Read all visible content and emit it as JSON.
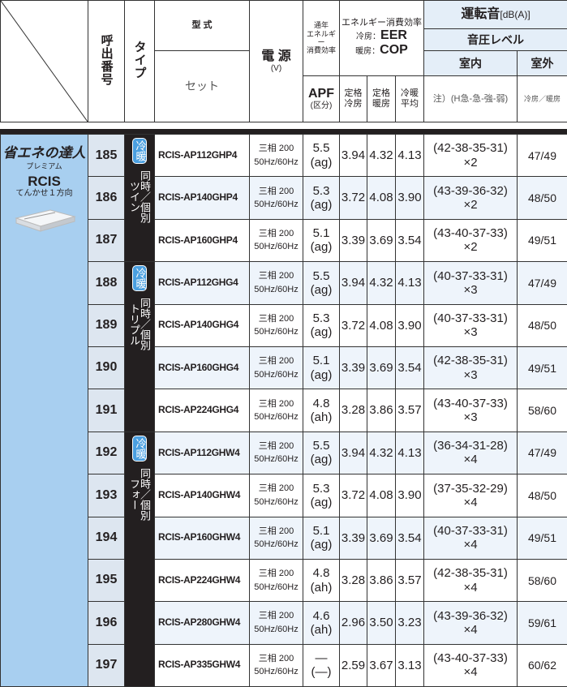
{
  "header": {
    "call_no": "呼出番号",
    "type": "タイプ",
    "model": "型 式",
    "set": "セット",
    "power": "電 源",
    "power_unit": "(V)",
    "annual": [
      "通年",
      "エネルギー",
      "消費効率"
    ],
    "eff": "エネルギー消費効率",
    "cool_label": "冷房：",
    "cool_code": "EER",
    "heat_label": "暖房：",
    "heat_code": "COP",
    "apf": "APF",
    "apf_class": "(区分)",
    "rated": "定格",
    "cool": "冷房",
    "heat": "暖房",
    "coolheat": "冷暖",
    "avg": "平均",
    "noise": "運転音",
    "noise_unit": "[dB(A)]",
    "pressure": "音圧レベル",
    "indoor": "室内",
    "outdoor": "室外",
    "note": "注）(H急-急-強-弱)",
    "outdoor_sub": "冷房／暖房"
  },
  "brand": {
    "logo": "省エネの達人",
    "sub": "プレミアム",
    "series": "RCIS",
    "kind": "てんかせ１方向"
  },
  "groups": [
    {
      "badge": "冷暖",
      "mode": "同時／個別",
      "kind": "ツイン",
      "rows": [
        [
          "185",
          "RCIS-AP112GHP4",
          "三相 200",
          "50Hz/60Hz",
          "5.5",
          "(ag)",
          "3.94",
          "4.32",
          "4.13",
          "(42-38-35-31)",
          "×2",
          "47/49"
        ],
        [
          "186",
          "RCIS-AP140GHP4",
          "三相 200",
          "50Hz/60Hz",
          "5.3",
          "(ag)",
          "3.72",
          "4.08",
          "3.90",
          "(43-39-36-32)",
          "×2",
          "48/50"
        ],
        [
          "187",
          "RCIS-AP160GHP4",
          "三相 200",
          "50Hz/60Hz",
          "5.1",
          "(ag)",
          "3.39",
          "3.69",
          "3.54",
          "(43-40-37-33)",
          "×2",
          "49/51"
        ]
      ]
    },
    {
      "badge": "冷暖",
      "mode": "同時／個別",
      "kind": "トリプル",
      "rows": [
        [
          "188",
          "RCIS-AP112GHG4",
          "三相 200",
          "50Hz/60Hz",
          "5.5",
          "(ag)",
          "3.94",
          "4.32",
          "4.13",
          "(40-37-33-31)",
          "×3",
          "47/49"
        ],
        [
          "189",
          "RCIS-AP140GHG4",
          "三相 200",
          "50Hz/60Hz",
          "5.3",
          "(ag)",
          "3.72",
          "4.08",
          "3.90",
          "(40-37-33-31)",
          "×3",
          "48/50"
        ],
        [
          "190",
          "RCIS-AP160GHG4",
          "三相 200",
          "50Hz/60Hz",
          "5.1",
          "(ag)",
          "3.39",
          "3.69",
          "3.54",
          "(42-38-35-31)",
          "×3",
          "49/51"
        ],
        [
          "191",
          "RCIS-AP224GHG4",
          "三相 200",
          "50Hz/60Hz",
          "4.8",
          "(ah)",
          "3.28",
          "3.86",
          "3.57",
          "(43-40-37-33)",
          "×3",
          "58/60"
        ]
      ]
    },
    {
      "badge": "冷暖",
      "mode": "同時／個別",
      "kind": "フォー",
      "rows": [
        [
          "192",
          "RCIS-AP112GHW4",
          "三相 200",
          "50Hz/60Hz",
          "5.5",
          "(ag)",
          "3.94",
          "4.32",
          "4.13",
          "(36-34-31-28)",
          "×4",
          "47/49"
        ],
        [
          "193",
          "RCIS-AP140GHW4",
          "三相 200",
          "50Hz/60Hz",
          "5.3",
          "(ag)",
          "3.72",
          "4.08",
          "3.90",
          "(37-35-32-29)",
          "×4",
          "48/50"
        ],
        [
          "194",
          "RCIS-AP160GHW4",
          "三相 200",
          "50Hz/60Hz",
          "5.1",
          "(ag)",
          "3.39",
          "3.69",
          "3.54",
          "(40-37-33-31)",
          "×4",
          "49/51"
        ],
        [
          "195",
          "RCIS-AP224GHW4",
          "三相 200",
          "50Hz/60Hz",
          "4.8",
          "(ah)",
          "3.28",
          "3.86",
          "3.57",
          "(42-38-35-31)",
          "×4",
          "58/60"
        ],
        [
          "196",
          "RCIS-AP280GHW4",
          "三相 200",
          "50Hz/60Hz",
          "4.6",
          "(ah)",
          "2.96",
          "3.50",
          "3.23",
          "(43-39-36-32)",
          "×4",
          "59/61"
        ],
        [
          "197",
          "RCIS-AP335GHW4",
          "三相 200",
          "50Hz/60Hz",
          "—",
          "(—)",
          "2.59",
          "3.67",
          "3.13",
          "(43-40-37-33)",
          "×4",
          "60/62"
        ]
      ]
    }
  ]
}
